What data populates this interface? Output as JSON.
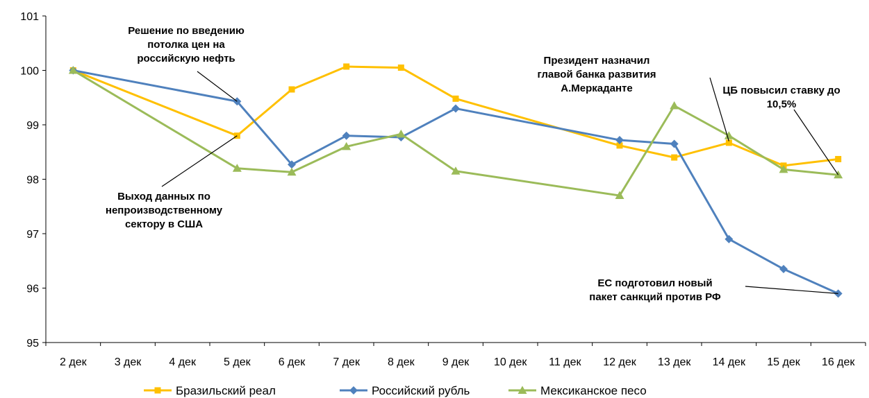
{
  "chart_data": {
    "type": "line",
    "categories": [
      "2 дек",
      "3 дек",
      "4 дек",
      "5 дек",
      "6 дек",
      "7 дек",
      "8 дек",
      "9 дек",
      "10 дек",
      "11 дек",
      "12 дек",
      "13 дек",
      "14 дек",
      "15 дек",
      "16 дек"
    ],
    "ylim": [
      95,
      101
    ],
    "yticks": [
      "95",
      "96",
      "97",
      "98",
      "99",
      "100",
      "101"
    ],
    "grid": false,
    "legend_position": "bottom",
    "series": [
      {
        "name": "Бразильский реал",
        "color": "#FFC000",
        "marker": "square",
        "points": [
          {
            "x": 0,
            "y": 100.0
          },
          {
            "x": 3,
            "y": 98.8
          },
          {
            "x": 4,
            "y": 99.65
          },
          {
            "x": 5,
            "y": 100.07
          },
          {
            "x": 6,
            "y": 100.05
          },
          {
            "x": 7,
            "y": 99.48
          },
          {
            "x": 10,
            "y": 98.62
          },
          {
            "x": 11,
            "y": 98.4
          },
          {
            "x": 12,
            "y": 98.67
          },
          {
            "x": 13,
            "y": 98.25
          },
          {
            "x": 14,
            "y": 98.37
          }
        ]
      },
      {
        "name": "Российский рубль",
        "color": "#4F81BD",
        "marker": "diamond",
        "points": [
          {
            "x": 0,
            "y": 100.0
          },
          {
            "x": 3,
            "y": 99.43
          },
          {
            "x": 4,
            "y": 98.27
          },
          {
            "x": 5,
            "y": 98.8
          },
          {
            "x": 6,
            "y": 98.77
          },
          {
            "x": 7,
            "y": 99.3
          },
          {
            "x": 10,
            "y": 98.72
          },
          {
            "x": 11,
            "y": 98.65
          },
          {
            "x": 12,
            "y": 96.9
          },
          {
            "x": 13,
            "y": 96.35
          },
          {
            "x": 14,
            "y": 95.9
          }
        ]
      },
      {
        "name": "Мексиканское песо",
        "color": "#9BBB59",
        "marker": "triangle",
        "points": [
          {
            "x": 0,
            "y": 100.0
          },
          {
            "x": 3,
            "y": 98.2
          },
          {
            "x": 4,
            "y": 98.13
          },
          {
            "x": 5,
            "y": 98.6
          },
          {
            "x": 6,
            "y": 98.83
          },
          {
            "x": 7,
            "y": 98.15
          },
          {
            "x": 10,
            "y": 97.7
          },
          {
            "x": 11,
            "y": 99.35
          },
          {
            "x": 12,
            "y": 98.8
          },
          {
            "x": 13,
            "y": 98.18
          },
          {
            "x": 14,
            "y": 98.08
          }
        ]
      }
    ],
    "annotations": [
      {
        "lines": [
          "Решение по введению",
          "потолка цен на",
          "российскую нефть"
        ],
        "target_x": 3,
        "target_y": 99.43
      },
      {
        "lines": [
          "Выход данных по",
          "непроизводственному",
          "сектору в США"
        ],
        "target_x": 3,
        "target_y": 98.8
      },
      {
        "lines": [
          "Президент назначил",
          "главой банка развития",
          "А.Меркаданте"
        ],
        "target_x": 12,
        "target_y": 98.7
      },
      {
        "lines": [
          "ЦБ повысил ставку до",
          "10,5%"
        ],
        "target_x": 14,
        "target_y": 98.08
      },
      {
        "lines": [
          "ЕС подготовил новый",
          "пакет санкций против РФ"
        ],
        "target_x": 14,
        "target_y": 95.9
      }
    ]
  }
}
